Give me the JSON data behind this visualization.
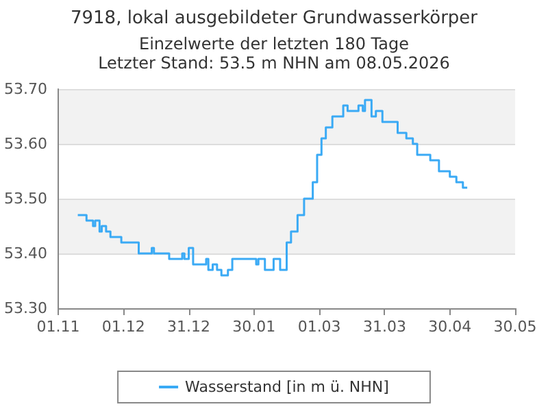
{
  "chart_data": {
    "type": "step",
    "title": "7918, lokal ausgebildeter Grundwasserkörper",
    "subtitle": "Einzelwerte der letzten 180 Tage",
    "annotations": [
      "Letzter Stand: 53.5 m NHN am 08.05.2026"
    ],
    "x": [
      "2025-11-10",
      "2025-11-14",
      "2025-11-15",
      "2025-11-17",
      "2025-11-18",
      "2025-11-20",
      "2025-11-21",
      "2025-11-23",
      "2025-11-25",
      "2025-11-27",
      "2025-11-30",
      "2025-12-02",
      "2025-12-08",
      "2025-12-11",
      "2025-12-14",
      "2025-12-15",
      "2025-12-16",
      "2025-12-22",
      "2025-12-23",
      "2025-12-28",
      "2025-12-29",
      "2025-12-31",
      "2026-01-02",
      "2026-01-04",
      "2026-01-08",
      "2026-01-09",
      "2026-01-11",
      "2026-01-13",
      "2026-01-15",
      "2026-01-18",
      "2026-01-20",
      "2026-01-23",
      "2026-01-31",
      "2026-02-01",
      "2026-02-04",
      "2026-02-08",
      "2026-02-11",
      "2026-02-14",
      "2026-02-16",
      "2026-02-19",
      "2026-02-22",
      "2026-02-26",
      "2026-02-28",
      "2026-03-02",
      "2026-03-04",
      "2026-03-07",
      "2026-03-10",
      "2026-03-12",
      "2026-03-14",
      "2026-03-15",
      "2026-03-19",
      "2026-03-21",
      "2026-03-22",
      "2026-03-25",
      "2026-03-27",
      "2026-03-30",
      "2026-03-31",
      "2026-04-06",
      "2026-04-07",
      "2026-04-10",
      "2026-04-13",
      "2026-04-15",
      "2026-04-18",
      "2026-04-21",
      "2026-04-25",
      "2026-04-27",
      "2026-04-30",
      "2026-05-03",
      "2026-05-04",
      "2026-05-06",
      "2026-05-08"
    ],
    "series": [
      {
        "name": "Wasserstand [in m ü. NHN]",
        "color": "#3aaaf5",
        "values": [
          53.47,
          53.47,
          53.46,
          53.46,
          53.45,
          53.46,
          53.44,
          53.45,
          53.44,
          53.43,
          53.43,
          53.42,
          53.42,
          53.4,
          53.4,
          53.41,
          53.4,
          53.4,
          53.39,
          53.39,
          53.4,
          53.39,
          53.41,
          53.38,
          53.38,
          53.39,
          53.37,
          53.38,
          53.37,
          53.36,
          53.37,
          53.39,
          53.39,
          53.38,
          53.39,
          53.37,
          53.39,
          53.37,
          53.42,
          53.44,
          53.47,
          53.5,
          53.53,
          53.58,
          53.61,
          53.63,
          53.65,
          53.65,
          53.67,
          53.66,
          53.66,
          53.67,
          53.66,
          53.68,
          53.65,
          53.66,
          53.64,
          53.64,
          53.62,
          53.62,
          53.61,
          53.6,
          53.58,
          53.58,
          53.57,
          53.55,
          53.55,
          53.54,
          53.53,
          53.53,
          53.52
        ]
      }
    ],
    "xlim": [
      "2025-11-01",
      "2026-05-30"
    ],
    "xticks": [
      {
        "value": "2025-11-01",
        "label": "01.11"
      },
      {
        "value": "2025-12-01",
        "label": "01.12"
      },
      {
        "value": "2025-12-31",
        "label": "31.12"
      },
      {
        "value": "2026-01-30",
        "label": "30.01"
      },
      {
        "value": "2026-03-01",
        "label": "01.03"
      },
      {
        "value": "2026-03-31",
        "label": "31.03"
      },
      {
        "value": "2026-04-30",
        "label": "30.04"
      },
      {
        "value": "2026-05-30",
        "label": "30.05"
      }
    ],
    "ylim": [
      53.3,
      53.7
    ],
    "yticks": [
      {
        "value": 53.3,
        "label": "53.30"
      },
      {
        "value": 53.4,
        "label": "53.40"
      },
      {
        "value": 53.5,
        "label": "53.50"
      },
      {
        "value": 53.6,
        "label": "53.60"
      },
      {
        "value": 53.7,
        "label": "53.70"
      }
    ],
    "grid": "y",
    "legend": "bottom",
    "marker": "none",
    "line_style": "solid"
  }
}
